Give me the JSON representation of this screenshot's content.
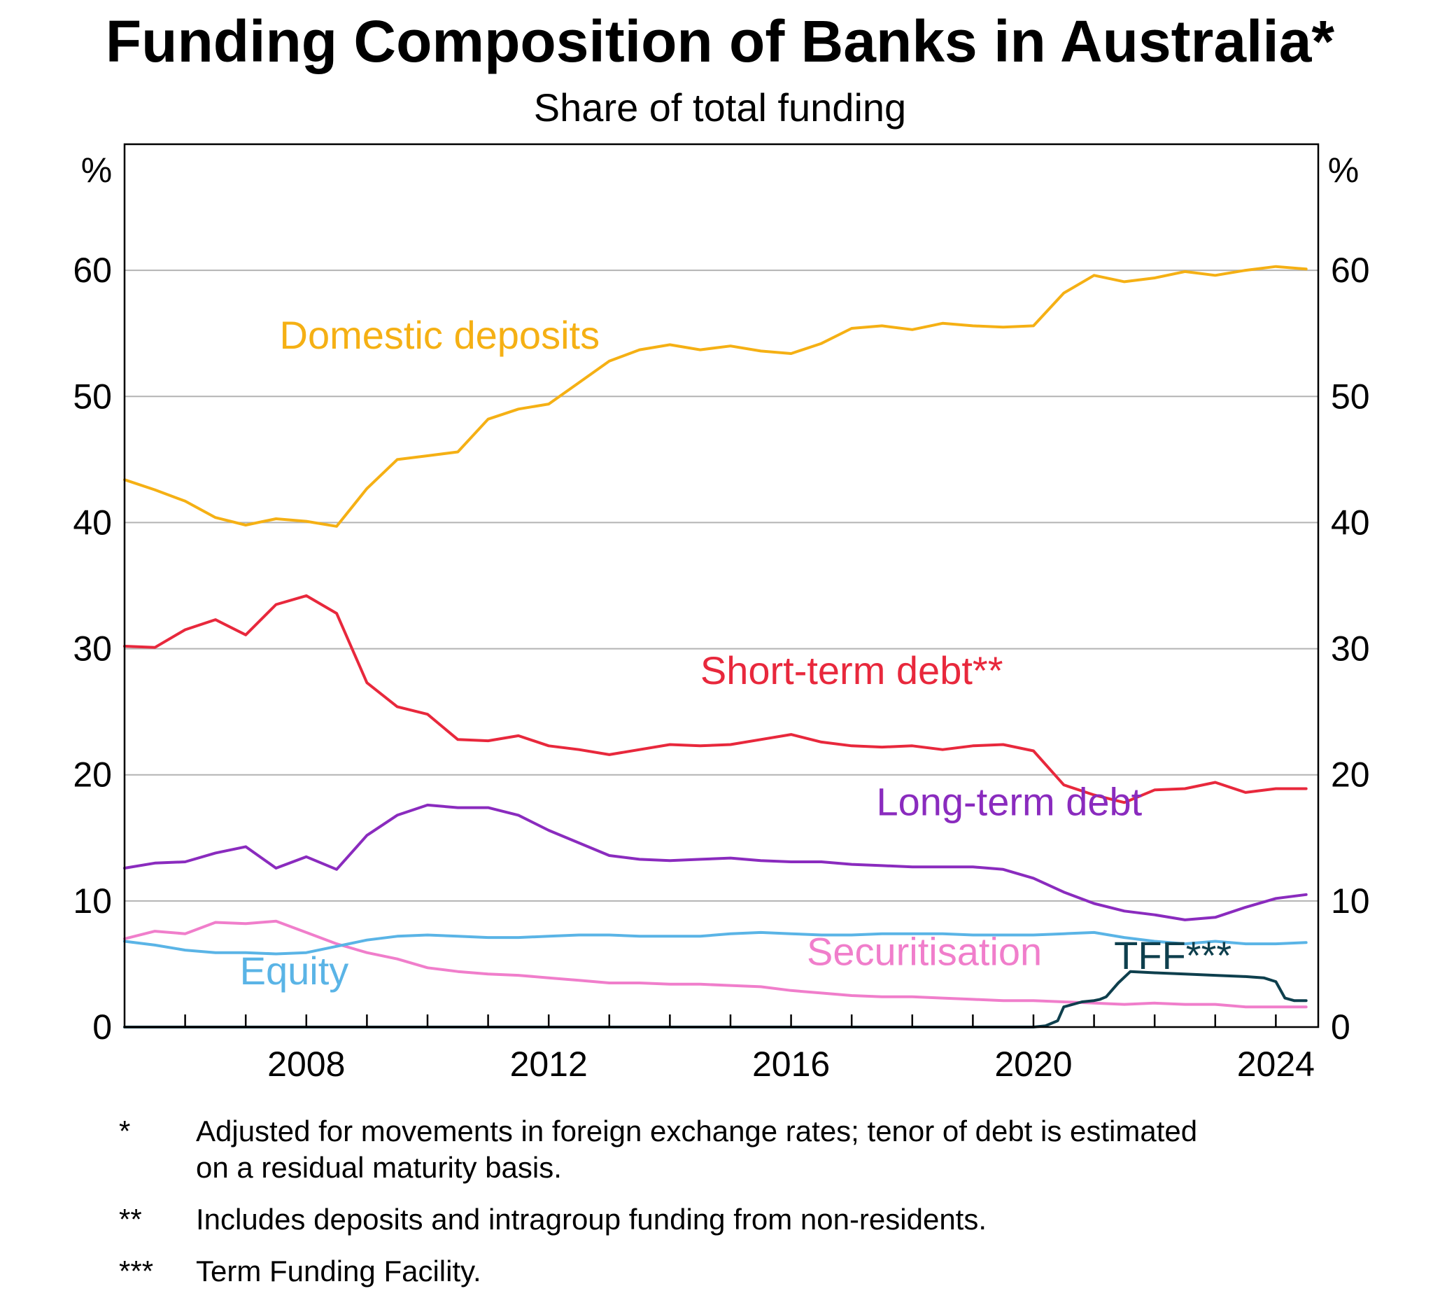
{
  "chart_data": {
    "type": "line",
    "title": "Funding Composition of Banks in Australia*",
    "subtitle": "Share of total funding",
    "yunit_left": "%",
    "yunit_right": "%",
    "xlim": [
      2005,
      2024.7
    ],
    "ylim": [
      0,
      70
    ],
    "yticks": [
      0,
      10,
      20,
      30,
      40,
      50,
      60
    ],
    "ytick_labels": [
      "0",
      "10",
      "20",
      "30",
      "40",
      "50",
      "60"
    ],
    "xticks": [
      2008,
      2012,
      2016,
      2020,
      2024
    ],
    "xtick_labels": [
      "2008",
      "2012",
      "2016",
      "2020",
      "2024"
    ],
    "grid": true,
    "series": [
      {
        "name": "Domestic deposits",
        "color": "#f5b014",
        "x": [
          2005.0,
          2005.5,
          2006.0,
          2006.5,
          2007.0,
          2007.5,
          2008.0,
          2008.5,
          2009.0,
          2009.5,
          2010.0,
          2010.5,
          2011.0,
          2011.5,
          2012.0,
          2012.5,
          2013.0,
          2013.5,
          2014.0,
          2014.5,
          2015.0,
          2015.5,
          2016.0,
          2016.5,
          2017.0,
          2017.5,
          2018.0,
          2018.5,
          2019.0,
          2019.5,
          2020.0,
          2020.5,
          2021.0,
          2021.5,
          2022.0,
          2022.5,
          2023.0,
          2023.5,
          2024.0,
          2024.5
        ],
        "values": [
          43.4,
          42.6,
          41.7,
          40.4,
          39.8,
          40.3,
          40.1,
          39.7,
          42.7,
          45.0,
          45.3,
          45.6,
          48.2,
          49.0,
          49.4,
          51.1,
          52.8,
          53.7,
          54.1,
          53.7,
          54.0,
          53.6,
          53.4,
          54.2,
          55.4,
          55.6,
          55.3,
          55.8,
          55.6,
          55.5,
          55.6,
          58.2,
          59.6,
          59.1,
          59.4,
          59.9,
          59.6,
          60.0,
          60.3,
          60.1
        ]
      },
      {
        "name": "Short-term debt**",
        "color": "#e8283c",
        "x": [
          2005.0,
          2005.5,
          2006.0,
          2006.5,
          2007.0,
          2007.5,
          2008.0,
          2008.5,
          2009.0,
          2009.5,
          2010.0,
          2010.5,
          2011.0,
          2011.5,
          2012.0,
          2012.5,
          2013.0,
          2013.5,
          2014.0,
          2014.5,
          2015.0,
          2015.5,
          2016.0,
          2016.5,
          2017.0,
          2017.5,
          2018.0,
          2018.5,
          2019.0,
          2019.5,
          2020.0,
          2020.5,
          2021.0,
          2021.5,
          2022.0,
          2022.5,
          2023.0,
          2023.5,
          2024.0,
          2024.5
        ],
        "values": [
          30.2,
          30.1,
          31.5,
          32.3,
          31.1,
          33.5,
          34.2,
          32.8,
          27.3,
          25.4,
          24.8,
          22.8,
          22.7,
          23.1,
          22.3,
          22.0,
          21.6,
          22.0,
          22.4,
          22.3,
          22.4,
          22.8,
          23.2,
          22.6,
          22.3,
          22.2,
          22.3,
          22.0,
          22.3,
          22.4,
          21.9,
          19.2,
          18.4,
          17.8,
          18.8,
          18.9,
          19.4,
          18.6,
          18.9,
          18.9
        ]
      },
      {
        "name": "Long-term debt",
        "color": "#8a2bbe",
        "x": [
          2005.0,
          2005.5,
          2006.0,
          2006.5,
          2007.0,
          2007.5,
          2008.0,
          2008.5,
          2009.0,
          2009.5,
          2010.0,
          2010.5,
          2011.0,
          2011.5,
          2012.0,
          2012.5,
          2013.0,
          2013.5,
          2014.0,
          2014.5,
          2015.0,
          2015.5,
          2016.0,
          2016.5,
          2017.0,
          2017.5,
          2018.0,
          2018.5,
          2019.0,
          2019.5,
          2020.0,
          2020.5,
          2021.0,
          2021.5,
          2022.0,
          2022.5,
          2023.0,
          2023.5,
          2024.0,
          2024.5
        ],
        "values": [
          12.6,
          13.0,
          13.1,
          13.8,
          14.3,
          12.6,
          13.5,
          12.5,
          15.2,
          16.8,
          17.6,
          17.4,
          17.4,
          16.8,
          15.6,
          14.6,
          13.6,
          13.3,
          13.2,
          13.3,
          13.4,
          13.2,
          13.1,
          13.1,
          12.9,
          12.8,
          12.7,
          12.7,
          12.7,
          12.5,
          11.8,
          10.7,
          9.8,
          9.2,
          8.9,
          8.5,
          8.7,
          9.5,
          10.2,
          10.5
        ]
      },
      {
        "name": "Equity",
        "color": "#5ab4e6",
        "x": [
          2005.0,
          2005.5,
          2006.0,
          2006.5,
          2007.0,
          2007.5,
          2008.0,
          2008.5,
          2009.0,
          2009.5,
          2010.0,
          2010.5,
          2011.0,
          2011.5,
          2012.0,
          2012.5,
          2013.0,
          2013.5,
          2014.0,
          2014.5,
          2015.0,
          2015.5,
          2016.0,
          2016.5,
          2017.0,
          2017.5,
          2018.0,
          2018.5,
          2019.0,
          2019.5,
          2020.0,
          2020.5,
          2021.0,
          2021.5,
          2022.0,
          2022.5,
          2023.0,
          2023.5,
          2024.0,
          2024.5
        ],
        "values": [
          6.8,
          6.5,
          6.1,
          5.9,
          5.9,
          5.8,
          5.9,
          6.4,
          6.9,
          7.2,
          7.3,
          7.2,
          7.1,
          7.1,
          7.2,
          7.3,
          7.3,
          7.2,
          7.2,
          7.2,
          7.4,
          7.5,
          7.4,
          7.3,
          7.3,
          7.4,
          7.4,
          7.4,
          7.3,
          7.3,
          7.3,
          7.4,
          7.5,
          7.1,
          6.8,
          6.6,
          6.8,
          6.6,
          6.6,
          6.7
        ]
      },
      {
        "name": "Securitisation",
        "color": "#f07ecb",
        "x": [
          2005.0,
          2005.5,
          2006.0,
          2006.5,
          2007.0,
          2007.5,
          2008.0,
          2008.5,
          2009.0,
          2009.5,
          2010.0,
          2010.5,
          2011.0,
          2011.5,
          2012.0,
          2012.5,
          2013.0,
          2013.5,
          2014.0,
          2014.5,
          2015.0,
          2015.5,
          2016.0,
          2016.5,
          2017.0,
          2017.5,
          2018.0,
          2018.5,
          2019.0,
          2019.5,
          2020.0,
          2020.5,
          2021.0,
          2021.5,
          2022.0,
          2022.5,
          2023.0,
          2023.5,
          2024.0,
          2024.5
        ],
        "values": [
          7.0,
          7.6,
          7.4,
          8.3,
          8.2,
          8.4,
          7.5,
          6.6,
          5.9,
          5.4,
          4.7,
          4.4,
          4.2,
          4.1,
          3.9,
          3.7,
          3.5,
          3.5,
          3.4,
          3.4,
          3.3,
          3.2,
          2.9,
          2.7,
          2.5,
          2.4,
          2.4,
          2.3,
          2.2,
          2.1,
          2.1,
          2.0,
          1.9,
          1.8,
          1.9,
          1.8,
          1.8,
          1.6,
          1.6,
          1.6
        ]
      },
      {
        "name": "TFF***",
        "color": "#0e3f4d",
        "x": [
          2005.0,
          2019.5,
          2020.0,
          2020.2,
          2020.4,
          2020.5,
          2020.8,
          2021.0,
          2021.1,
          2021.2,
          2021.4,
          2021.6,
          2022.0,
          2022.5,
          2023.0,
          2023.5,
          2023.8,
          2024.0,
          2024.15,
          2024.3,
          2024.5
        ],
        "values": [
          0,
          0,
          0,
          0.1,
          0.5,
          1.6,
          2.0,
          2.1,
          2.2,
          2.4,
          3.5,
          4.4,
          4.3,
          4.2,
          4.1,
          4.0,
          3.9,
          3.6,
          2.3,
          2.1,
          2.1
        ]
      }
    ],
    "annotations": [
      {
        "text": "Domestic deposits",
        "series": "Domestic deposits",
        "x": 2010.2,
        "y": 53.8
      },
      {
        "text": "Short-term debt**",
        "series": "Short-term debt**",
        "x": 2017.0,
        "y": 27.2
      },
      {
        "text": "Long-term debt",
        "series": "Long-term debt",
        "x": 2019.6,
        "y": 16.8
      },
      {
        "text": "Equity",
        "series": "Equity",
        "x": 2007.8,
        "y": 3.4
      },
      {
        "text": "Securitisation",
        "series": "Securitisation",
        "x": 2018.2,
        "y": 4.9
      },
      {
        "text": "TFF***",
        "series": "TFF***",
        "x": 2022.3,
        "y": 4.6
      }
    ]
  },
  "footnotes": [
    {
      "mark": "*",
      "text": "Adjusted for movements in foreign exchange rates; tenor of debt is estimated on a residual maturity basis."
    },
    {
      "mark": "**",
      "text": "Includes deposits and intragroup funding from non-residents."
    },
    {
      "mark": "***",
      "text": "Term Funding Facility."
    }
  ]
}
